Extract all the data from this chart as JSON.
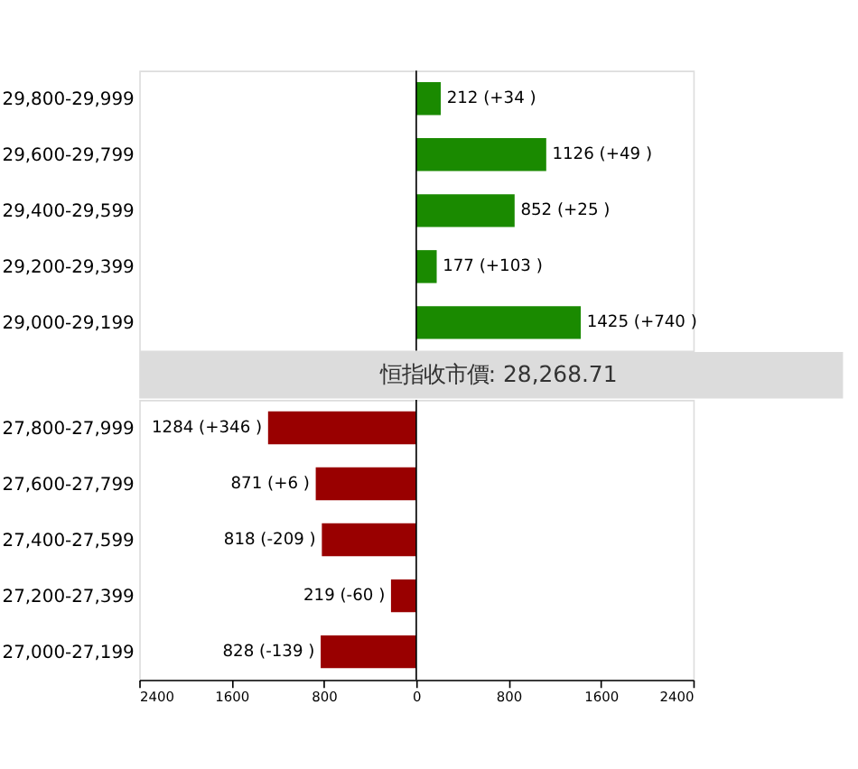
{
  "chart_data": [
    {
      "type": "bar",
      "orientation": "horizontal",
      "categories": [
        "29,800-29,999",
        "29,600-29,799",
        "29,400-29,599",
        "29,200-29,399",
        "29,000-29,199"
      ],
      "values": [
        212,
        1126,
        852,
        177,
        1425
      ],
      "colors": [
        "#1a8a00",
        "#1a8a00",
        "#1a8a00",
        "#1a8a00",
        "#1a8a00"
      ],
      "value_labels": [
        "212 (+34 )",
        "1126 (+49 )",
        "852 (+25 )",
        "177 (+103 )",
        "1425 (+740 )"
      ],
      "annotations": [
        "恒指收市價: 28,268.71"
      ],
      "xlim": [
        -2400,
        2400
      ],
      "tick_labels": "y"
    },
    {
      "type": "bar",
      "orientation": "horizontal",
      "categories": [
        "27,800-27,999",
        "27,600-27,799",
        "27,400-27,599",
        "27,200-27,399",
        "27,000-27,199"
      ],
      "values": [
        1284,
        871,
        818,
        219,
        828
      ],
      "colors": [
        "#990000",
        "#990000",
        "#990000",
        "#990000",
        "#990000"
      ],
      "value_labels": [
        "1284 (+346 )",
        "871 (+6 )",
        "818 (-209 )",
        "219 (-60 )",
        "828 (-139 )"
      ],
      "xlim": [
        2400,
        -2400
      ],
      "xticks": [
        2400,
        1600,
        800,
        0,
        {
          "value": -800,
          "label": "800"
        },
        {
          "value": -1600,
          "label": "1600"
        },
        {
          "value": -2400,
          "label": "2400"
        }
      ]
    }
  ]
}
